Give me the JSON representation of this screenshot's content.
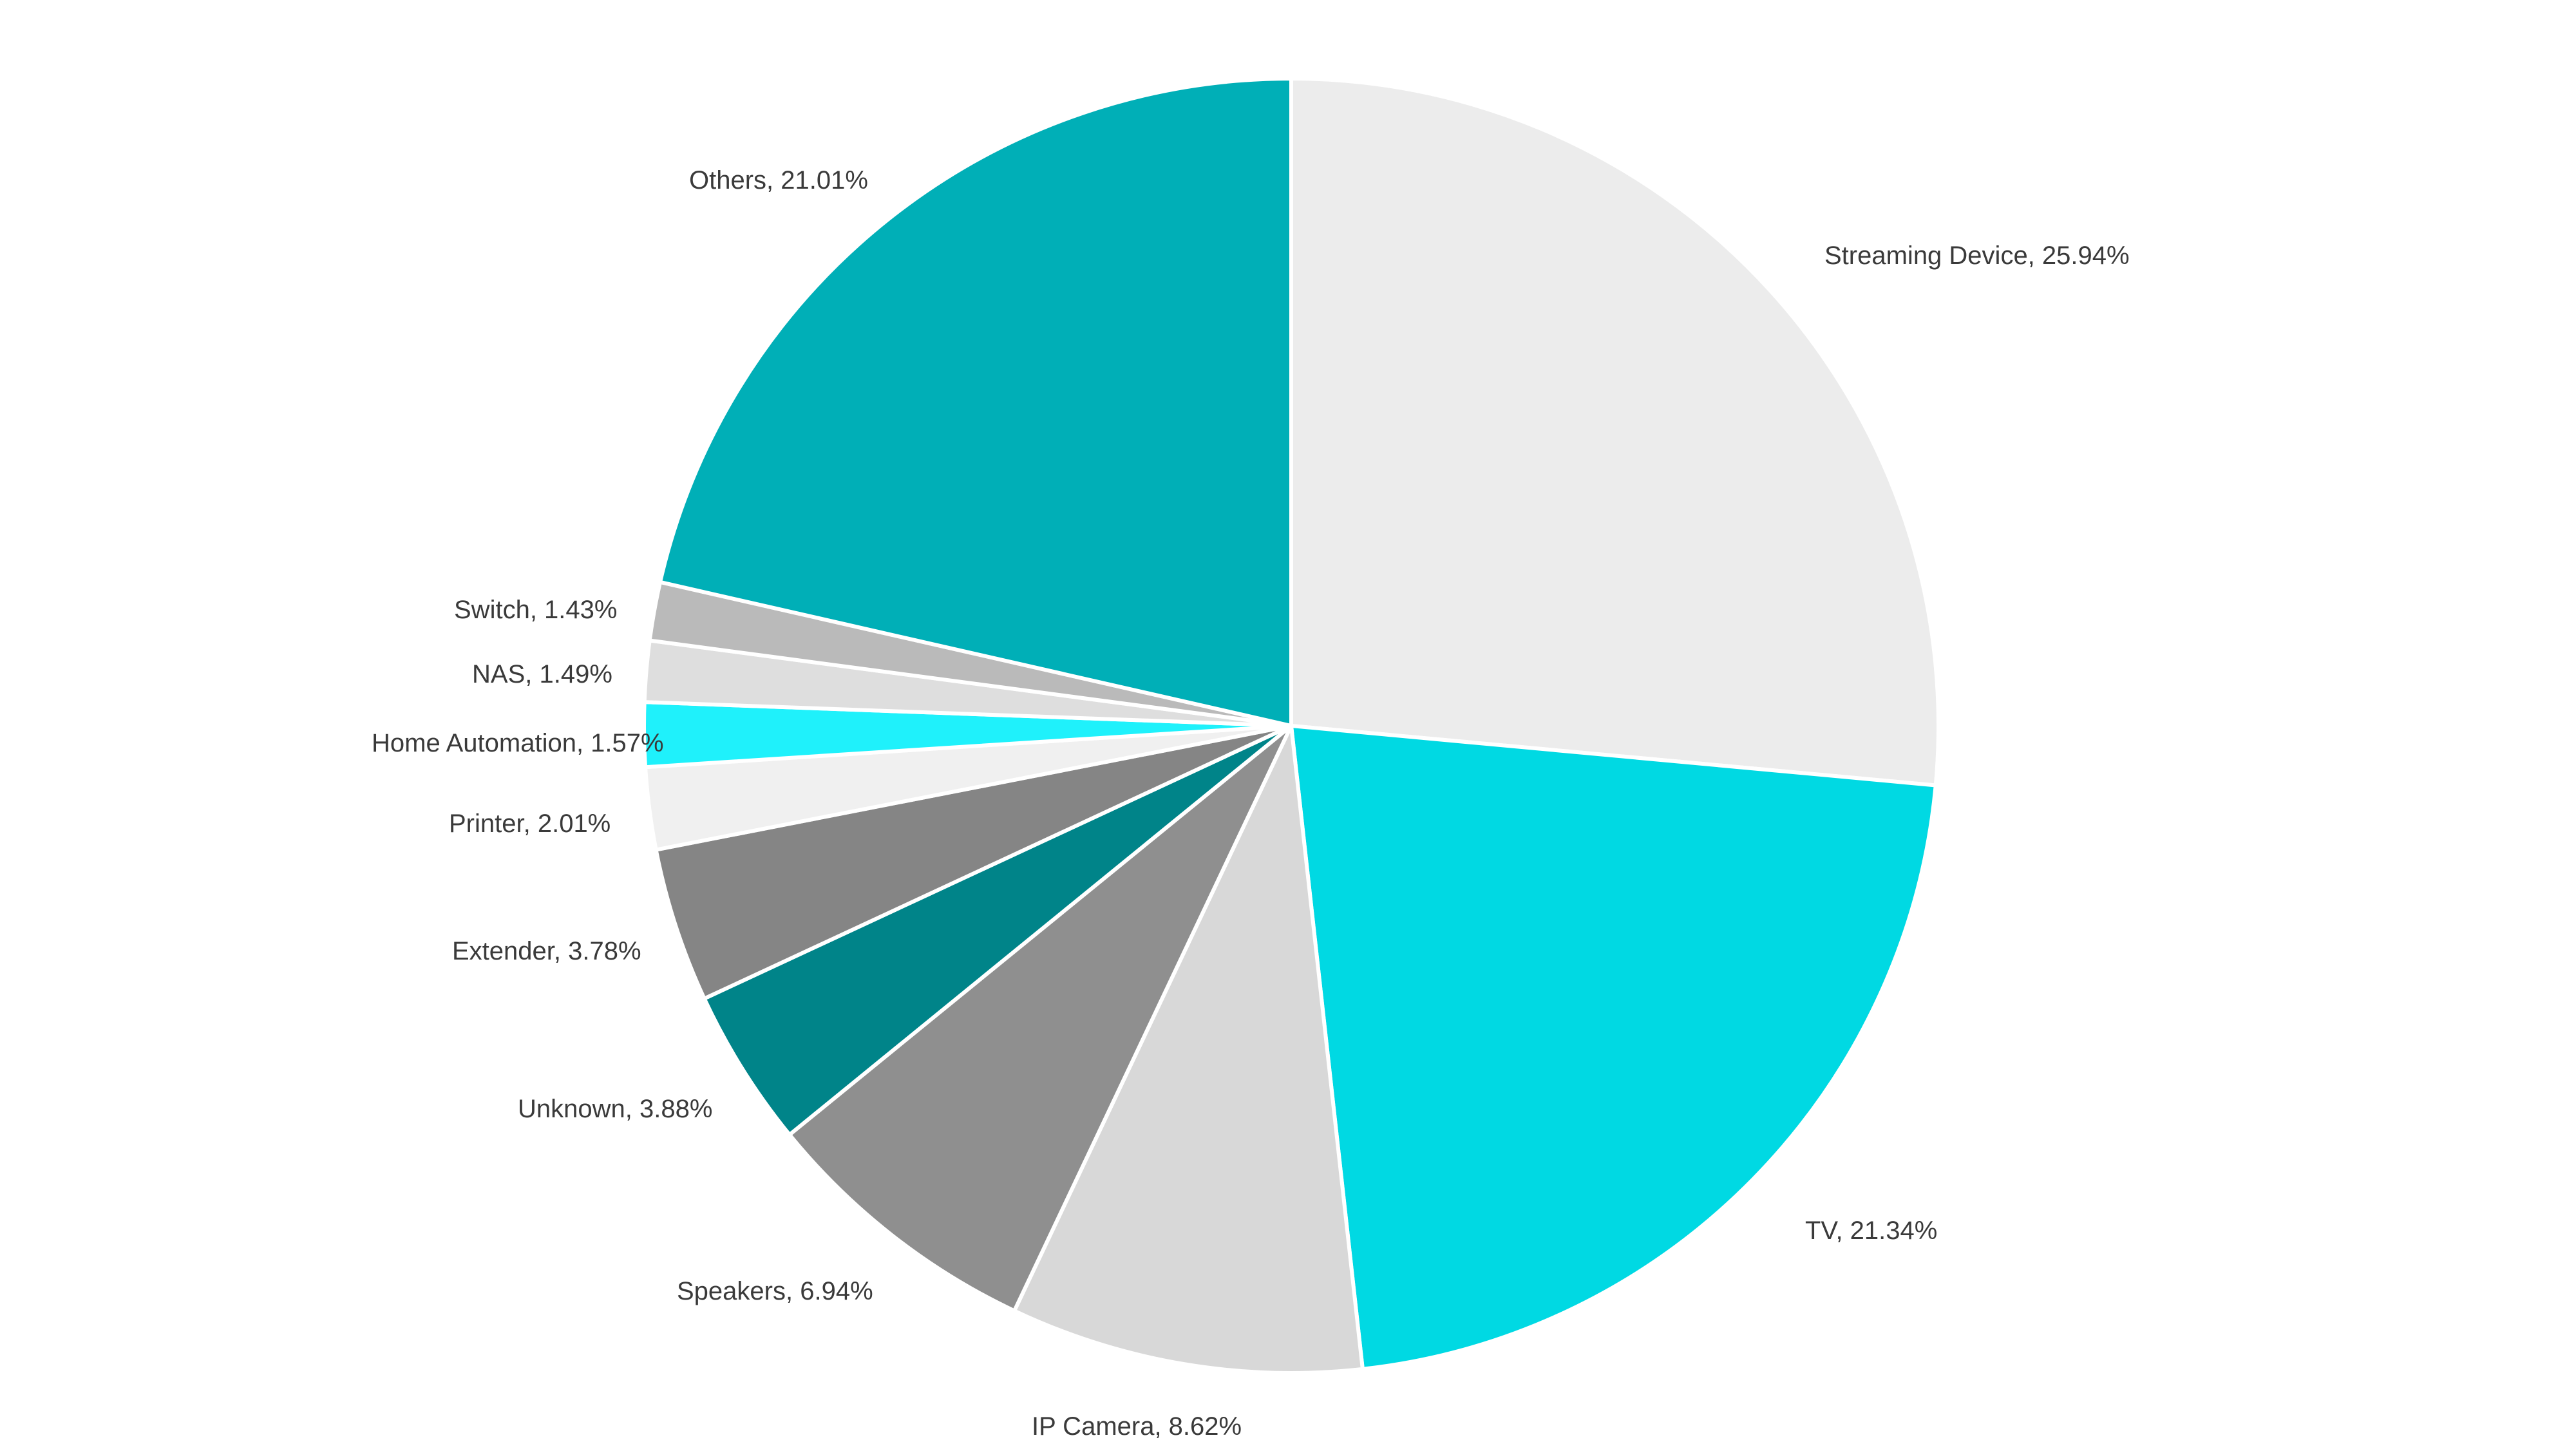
{
  "chart_data": {
    "type": "pie",
    "title": "",
    "start_angle": "12 o'clock, clockwise",
    "center": [
      2005,
      1127
    ],
    "radius": 1005,
    "slices": [
      {
        "name": "Streaming Device",
        "value": 25.94,
        "label": "Streaming Device, 25.94%",
        "color": "#ececec",
        "label_pos": [
          2833,
          410
        ],
        "anchor": "start"
      },
      {
        "name": "TV",
        "value": 21.34,
        "label": "TV, 21.34%",
        "color": "#00d9e3",
        "label_pos": [
          2803,
          1924
        ],
        "anchor": "start"
      },
      {
        "name": "IP Camera",
        "value": 8.62,
        "label": "IP Camera, 8.62%",
        "color": "#d8d8d8",
        "label_pos": [
          1602,
          2228
        ],
        "anchor": "start"
      },
      {
        "name": "Speakers",
        "value": 6.94,
        "label": "Speakers, 6.94%",
        "color": "#8f8f8f",
        "label_pos": [
          1051,
          2018
        ],
        "anchor": "start"
      },
      {
        "name": "Unknown",
        "value": 3.88,
        "label": "Unknown, 3.88%",
        "color": "#008489",
        "label_pos": [
          804,
          1735
        ],
        "anchor": "start"
      },
      {
        "name": "Extender",
        "value": 3.78,
        "label": "Extender, 3.78%",
        "color": "#858585",
        "label_pos": [
          702,
          1490
        ],
        "anchor": "start"
      },
      {
        "name": "Printer",
        "value": 2.01,
        "label": "Printer, 2.01%",
        "color": "#f0f0f0",
        "label_pos": [
          697,
          1292
        ],
        "anchor": "start"
      },
      {
        "name": "Home Automation",
        "value": 1.57,
        "label": "Home Automation, 1.57%",
        "color": "#1ff1fb",
        "label_pos": [
          577,
          1167
        ],
        "anchor": "start"
      },
      {
        "name": "NAS",
        "value": 1.49,
        "label": "NAS, 1.49%",
        "color": "#dedede",
        "label_pos": [
          733,
          1060
        ],
        "anchor": "start"
      },
      {
        "name": "Switch",
        "value": 1.43,
        "label": "Switch, 1.43%",
        "color": "#bababa",
        "label_pos": [
          705,
          960
        ],
        "anchor": "start"
      },
      {
        "name": "Others",
        "value": 21.01,
        "label": "Others, 21.01%",
        "color": "#00afb7",
        "label_pos": [
          1070,
          293
        ],
        "anchor": "start"
      }
    ],
    "categories": [
      "Streaming Device",
      "TV",
      "IP Camera",
      "Speakers",
      "Unknown",
      "Extender",
      "Printer",
      "Home Automation",
      "NAS",
      "Switch",
      "Others"
    ],
    "values": [
      25.94,
      21.34,
      8.62,
      6.94,
      3.88,
      3.78,
      2.01,
      1.57,
      1.49,
      1.43,
      21.01
    ],
    "legend": "none (inline data labels)"
  }
}
